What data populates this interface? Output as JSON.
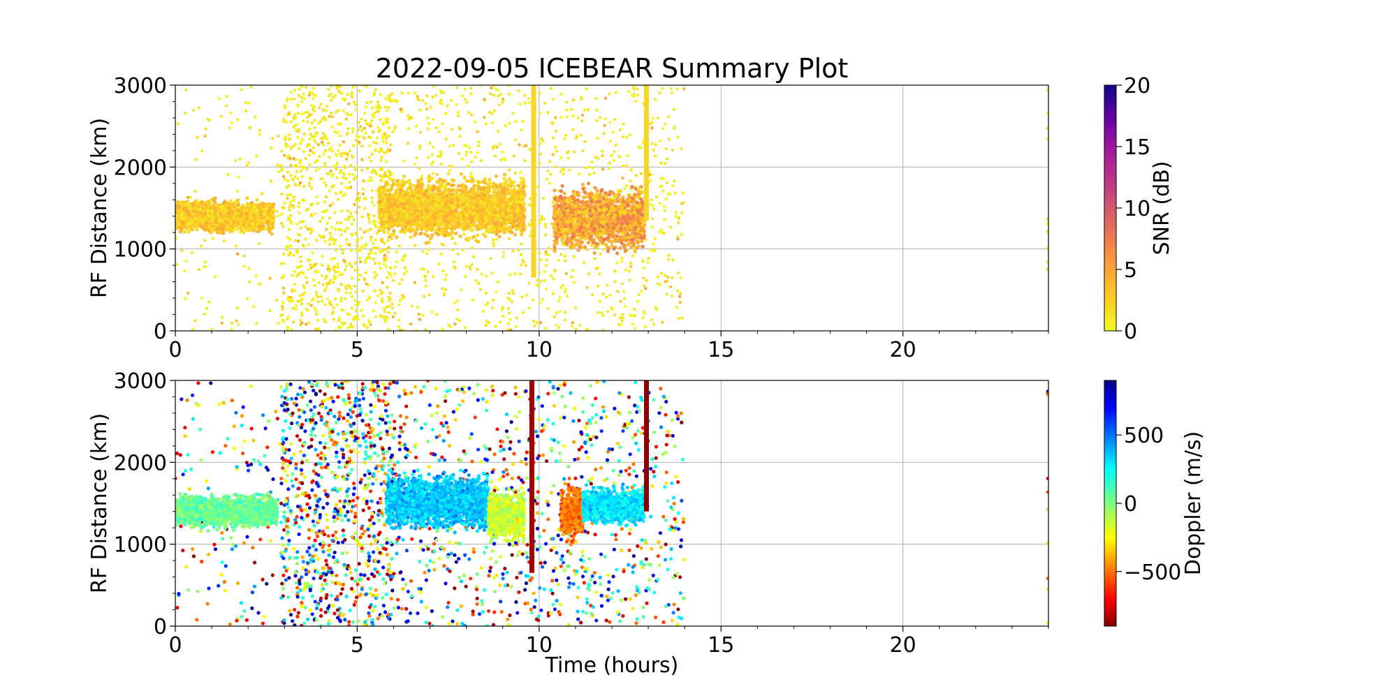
{
  "title": "2022-09-05 ICEBEAR Summary Plot",
  "colors": {
    "snr_colormap": "plasma_r",
    "doppler_colormap": "jet_r",
    "grid": "#b0b0b0",
    "background": "#ffffff"
  },
  "chart_data": [
    {
      "type": "scatter",
      "panel": "top",
      "title": "2022-09-05 ICEBEAR Summary Plot",
      "xlabel": "",
      "ylabel": "RF Distance (km)",
      "xlim": [
        0,
        24
      ],
      "ylim": [
        0,
        3000
      ],
      "xticks": [
        "0",
        "5",
        "10",
        "15",
        "20"
      ],
      "yticks": [
        "0",
        "1000",
        "2000",
        "3000"
      ],
      "grid": true,
      "data_extent_hours": [
        0,
        14
      ],
      "color_variable": "SNR (dB)",
      "colorbar": {
        "label": "SNR (dB)",
        "range": [
          0,
          20
        ],
        "ticks": [
          "0",
          "5",
          "10",
          "15",
          "20"
        ]
      },
      "main_echo_band_km": [
        1000,
        2000
      ],
      "echo_segments": [
        {
          "t0": 0.0,
          "t1": 2.7,
          "r0": 1150,
          "r1": 1650,
          "snr": 3
        },
        {
          "t0": 5.6,
          "t1": 9.6,
          "r0": 1050,
          "r1": 1950,
          "snr": 3
        },
        {
          "t0": 10.4,
          "t1": 12.9,
          "r0": 900,
          "r1": 1850,
          "snr": 5
        }
      ],
      "vertical_spikes": [
        {
          "t": 9.85,
          "r0": 650,
          "r1": 3000
        },
        {
          "t": 12.95,
          "r0": 1350,
          "r1": 3000
        }
      ],
      "noise_periods": [
        {
          "t0": 0.0,
          "t1": 2.9,
          "density": "sparse"
        },
        {
          "t0": 2.9,
          "t1": 6.0,
          "density": "dense"
        },
        {
          "t0": 6.0,
          "t1": 14.0,
          "density": "medium"
        }
      ]
    },
    {
      "type": "scatter",
      "panel": "bottom",
      "title": "",
      "xlabel": "Time (hours)",
      "ylabel": "RF Distance (km)",
      "xlim": [
        0,
        24
      ],
      "ylim": [
        0,
        3000
      ],
      "xticks": [
        "0",
        "5",
        "10",
        "15",
        "20"
      ],
      "yticks": [
        "0",
        "1000",
        "2000",
        "3000"
      ],
      "grid": true,
      "data_extent_hours": [
        0,
        14
      ],
      "color_variable": "Doppler (m/s)",
      "colorbar": {
        "label": "Doppler (m/s)",
        "range": [
          -900,
          900
        ],
        "ticks": [
          "500",
          "0",
          "−500"
        ]
      },
      "echo_segments": [
        {
          "t0": 0.0,
          "t1": 2.8,
          "r0": 1150,
          "r1": 1650,
          "doppler": 50
        },
        {
          "t0": 5.8,
          "t1": 8.6,
          "r0": 1100,
          "r1": 1950,
          "doppler": 350
        },
        {
          "t0": 8.6,
          "t1": 9.6,
          "r0": 950,
          "r1": 1750,
          "doppler": -150
        },
        {
          "t0": 10.6,
          "t1": 11.2,
          "r0": 950,
          "r1": 1850,
          "doppler": -500
        },
        {
          "t0": 11.2,
          "t1": 12.9,
          "r0": 1200,
          "r1": 1750,
          "doppler": 300
        }
      ],
      "vertical_spikes": [
        {
          "t": 9.8,
          "r0": 650,
          "r1": 3000,
          "doppler": -850
        },
        {
          "t": 12.95,
          "r0": 1400,
          "r1": 3000,
          "doppler": -880
        }
      ],
      "noise_periods": [
        {
          "t0": 0.0,
          "t1": 2.9,
          "density": "sparse"
        },
        {
          "t0": 2.9,
          "t1": 6.0,
          "density": "dense"
        },
        {
          "t0": 6.0,
          "t1": 14.0,
          "density": "medium"
        }
      ]
    }
  ]
}
